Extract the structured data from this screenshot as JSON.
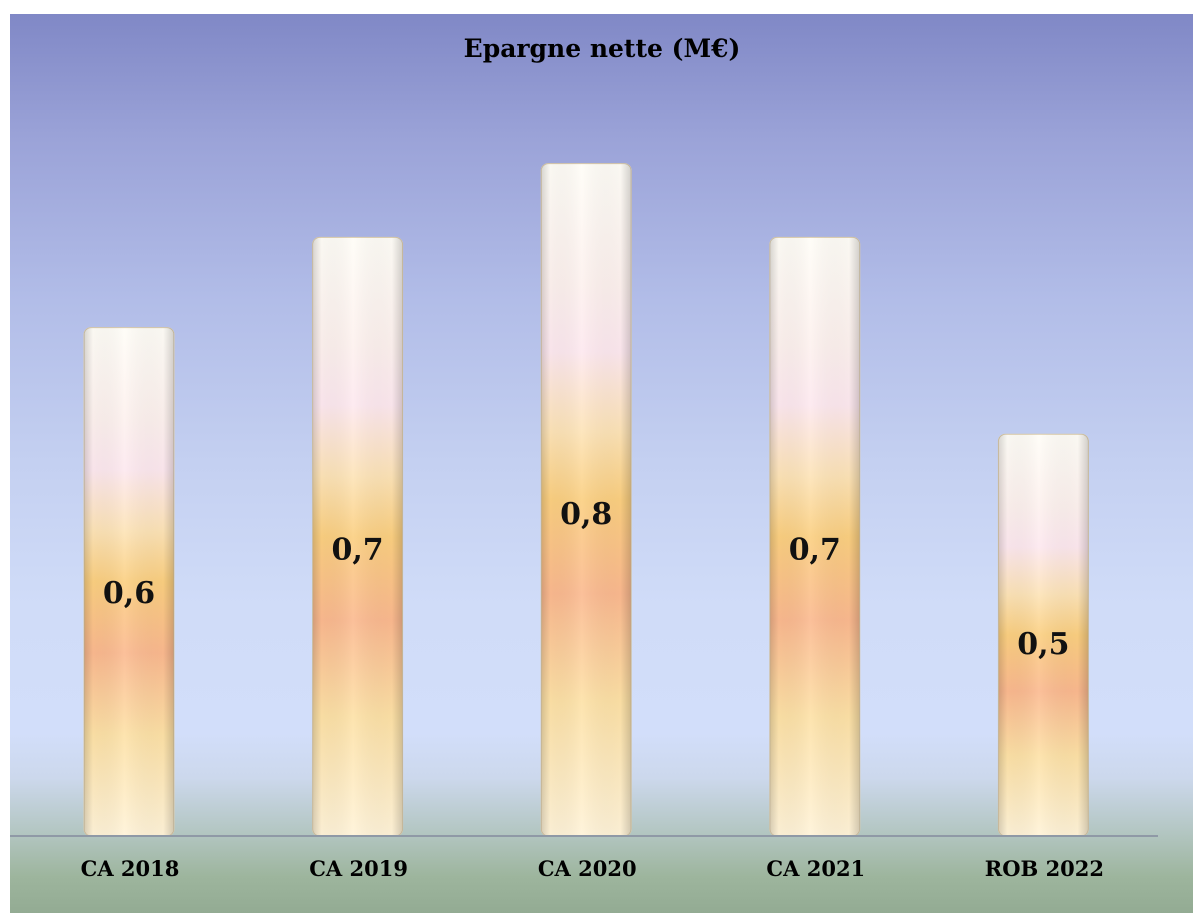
{
  "chart_data": {
    "type": "bar",
    "title": "Epargne nette (M€)",
    "categories": [
      "CA 2018",
      "CA 2019",
      "CA 2020",
      "CA 2021",
      "ROB 2022"
    ],
    "values": [
      0.62,
      0.73,
      0.82,
      0.73,
      0.49
    ],
    "value_labels": [
      "0,6",
      "0,7",
      "0,8",
      "0,7",
      "0,5"
    ],
    "xlabel": "",
    "ylabel": "",
    "ylim": [
      0,
      0.9
    ],
    "grid": false,
    "legend": "none",
    "colors": {
      "bar_top": "#fffdf7",
      "bar_pink": "#fde9ef",
      "bar_gold": "#fbcf80",
      "bar_peach": "#fbb98f",
      "bar_light": "#fde8b0",
      "axis": "#8f99a6"
    }
  }
}
